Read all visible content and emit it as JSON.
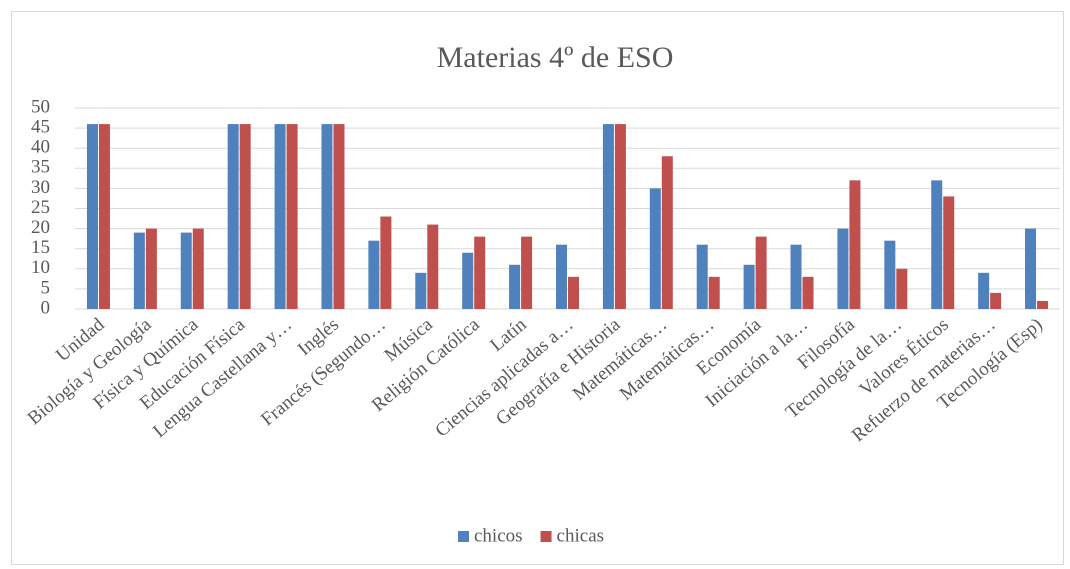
{
  "chart_data": {
    "type": "bar",
    "title": "Materias 4º de ESO",
    "categories": [
      "Unidad",
      "Biología y Geología",
      "Física y Química",
      "Educación Física",
      "Lengua Castellana y…",
      "Inglés",
      "Francés (Segundo…",
      "Música",
      "Religión Católica",
      "Latín",
      "Ciencias aplicadas a…",
      "Geografía e Historia",
      "Matemáticas…",
      "Matemáticas…",
      "Economía",
      "Iniciación a la…",
      "Filosofía",
      "Tecnología de la…",
      "Valores Éticos",
      "Refuerzo de materias…",
      "Tecnología (Esp)"
    ],
    "series": [
      {
        "name": "chicos",
        "color": "#4f81bd",
        "values": [
          46,
          19,
          19,
          46,
          46,
          46,
          17,
          9,
          14,
          11,
          16,
          46,
          30,
          16,
          11,
          16,
          20,
          17,
          32,
          9,
          20
        ]
      },
      {
        "name": "chicas",
        "color": "#c0504d",
        "values": [
          46,
          20,
          20,
          46,
          46,
          46,
          23,
          21,
          18,
          18,
          8,
          46,
          38,
          8,
          18,
          8,
          32,
          10,
          28,
          4,
          2
        ]
      }
    ],
    "ylim": [
      0,
      50
    ],
    "yticks": [
      0,
      5,
      10,
      15,
      20,
      25,
      30,
      35,
      40,
      45,
      50
    ],
    "grid": true,
    "legend": "bottom"
  }
}
